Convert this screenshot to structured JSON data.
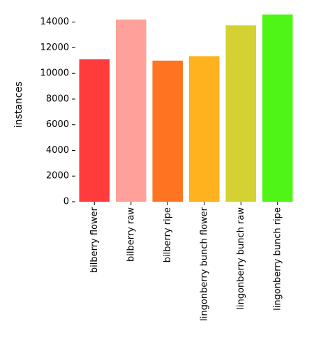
{
  "chart_data": {
    "type": "bar",
    "categories": [
      "bilberry flower",
      "bilberry raw",
      "bilberry ripe",
      "lingonberry bunch flower",
      "lingonberry bunch raw",
      "lingonberry bunch ripe"
    ],
    "values": [
      11100,
      14200,
      11000,
      11350,
      13750,
      14600
    ],
    "colors": [
      "#ff3b3b",
      "#ffa09a",
      "#ff7420",
      "#ffb21e",
      "#d4d232",
      "#4ff517"
    ],
    "title": "",
    "xlabel": "",
    "ylabel": "instances",
    "ylim": [
      0,
      14800
    ],
    "yticks": [
      0,
      2000,
      4000,
      6000,
      8000,
      10000,
      12000,
      14000
    ],
    "grid": false,
    "legend": "none"
  }
}
